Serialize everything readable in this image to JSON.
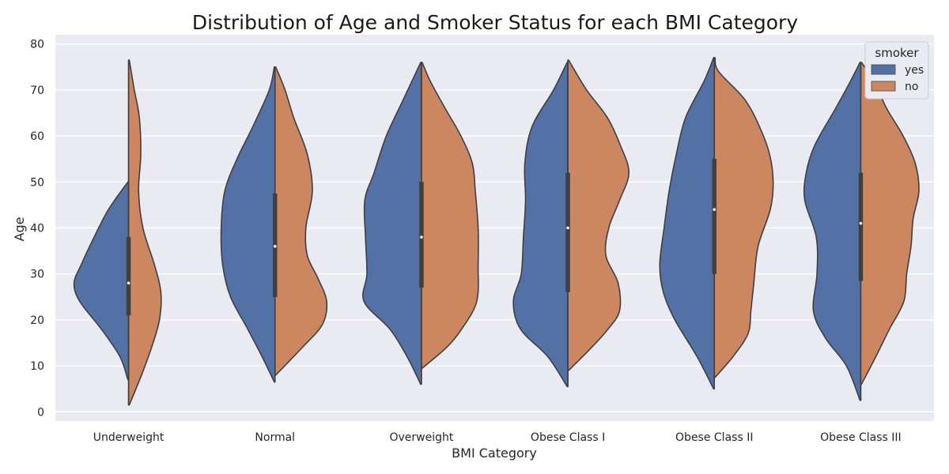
{
  "chart_data": {
    "type": "violin",
    "split": true,
    "title": "Distribution of Age and Smoker Status for each BMI Category",
    "xlabel": "BMI Category",
    "ylabel": "Age",
    "categories": [
      "Underweight",
      "Normal",
      "Overweight",
      "Obese Class I",
      "Obese Class II",
      "Obese Class III"
    ],
    "ylim": [
      -2,
      82
    ],
    "yticks": [
      0,
      10,
      20,
      30,
      40,
      50,
      60,
      70,
      80
    ],
    "grid": true,
    "legend": {
      "title": "smoker",
      "position": "top-right",
      "entries": [
        {
          "label": "yes",
          "color": "#5471a5"
        },
        {
          "label": "no",
          "color": "#cc8760"
        }
      ]
    },
    "series": [
      {
        "name": "yes",
        "color": "#5471a5",
        "side": "left",
        "violins": [
          {
            "range": [
              7,
              50
            ],
            "profile": [
              [
                7,
                0.01
              ],
              [
                12,
                0.12
              ],
              [
                18,
                0.38
              ],
              [
                24,
                0.68
              ],
              [
                28,
                0.76
              ],
              [
                32,
                0.66
              ],
              [
                38,
                0.48
              ],
              [
                44,
                0.28
              ],
              [
                50,
                0.01
              ]
            ]
          },
          {
            "range": [
              6.5,
              75
            ],
            "profile": [
              [
                6.5,
                0.01
              ],
              [
                12,
                0.18
              ],
              [
                18,
                0.38
              ],
              [
                25,
                0.62
              ],
              [
                32,
                0.73
              ],
              [
                40,
                0.75
              ],
              [
                48,
                0.7
              ],
              [
                55,
                0.53
              ],
              [
                62,
                0.31
              ],
              [
                70,
                0.08
              ],
              [
                75,
                0.01
              ]
            ]
          },
          {
            "range": [
              6,
              76
            ],
            "profile": [
              [
                6,
                0.01
              ],
              [
                12,
                0.2
              ],
              [
                18,
                0.44
              ],
              [
                24,
                0.8
              ],
              [
                30,
                0.76
              ],
              [
                38,
                0.78
              ],
              [
                46,
                0.79
              ],
              [
                52,
                0.66
              ],
              [
                60,
                0.49
              ],
              [
                68,
                0.25
              ],
              [
                76,
                0.01
              ]
            ]
          },
          {
            "range": [
              5.5,
              76
            ],
            "profile": [
              [
                5.5,
                0.01
              ],
              [
                12,
                0.28
              ],
              [
                18,
                0.66
              ],
              [
                24,
                0.76
              ],
              [
                30,
                0.65
              ],
              [
                38,
                0.62
              ],
              [
                46,
                0.59
              ],
              [
                54,
                0.6
              ],
              [
                62,
                0.5
              ],
              [
                70,
                0.2
              ],
              [
                76,
                0.01
              ]
            ]
          },
          {
            "range": [
              5,
              77
            ],
            "profile": [
              [
                5,
                0.01
              ],
              [
                12,
                0.24
              ],
              [
                20,
                0.55
              ],
              [
                26,
                0.71
              ],
              [
                32,
                0.76
              ],
              [
                40,
                0.7
              ],
              [
                48,
                0.63
              ],
              [
                56,
                0.53
              ],
              [
                64,
                0.4
              ],
              [
                72,
                0.14
              ],
              [
                77,
                0.01
              ]
            ]
          },
          {
            "range": [
              2.5,
              76
            ],
            "profile": [
              [
                2.5,
                0.01
              ],
              [
                10,
                0.2
              ],
              [
                16,
                0.49
              ],
              [
                22,
                0.66
              ],
              [
                30,
                0.61
              ],
              [
                38,
                0.62
              ],
              [
                46,
                0.78
              ],
              [
                52,
                0.76
              ],
              [
                58,
                0.64
              ],
              [
                66,
                0.35
              ],
              [
                72,
                0.14
              ],
              [
                76,
                0.01
              ]
            ]
          }
        ]
      },
      {
        "name": "no",
        "color": "#cc8760",
        "side": "right",
        "violins": [
          {
            "range": [
              1.5,
              76.5
            ],
            "profile": [
              [
                1.5,
                0.01
              ],
              [
                8,
                0.18
              ],
              [
                14,
                0.32
              ],
              [
                20,
                0.43
              ],
              [
                26,
                0.45
              ],
              [
                32,
                0.36
              ],
              [
                40,
                0.2
              ],
              [
                48,
                0.14
              ],
              [
                56,
                0.17
              ],
              [
                64,
                0.15
              ],
              [
                70,
                0.08
              ],
              [
                76.5,
                0.01
              ]
            ]
          },
          {
            "range": [
              8,
              75
            ],
            "profile": [
              [
                8,
                0.01
              ],
              [
                14,
                0.38
              ],
              [
                19,
                0.66
              ],
              [
                24,
                0.72
              ],
              [
                29,
                0.6
              ],
              [
                34,
                0.45
              ],
              [
                40,
                0.43
              ],
              [
                48,
                0.52
              ],
              [
                56,
                0.45
              ],
              [
                64,
                0.26
              ],
              [
                70,
                0.14
              ],
              [
                75,
                0.01
              ]
            ]
          },
          {
            "range": [
              9.5,
              76
            ],
            "profile": [
              [
                9.5,
                0.01
              ],
              [
                14,
                0.35
              ],
              [
                18,
                0.56
              ],
              [
                24,
                0.77
              ],
              [
                32,
                0.79
              ],
              [
                40,
                0.79
              ],
              [
                48,
                0.75
              ],
              [
                54,
                0.71
              ],
              [
                60,
                0.55
              ],
              [
                66,
                0.33
              ],
              [
                72,
                0.12
              ],
              [
                76,
                0.01
              ]
            ]
          },
          {
            "range": [
              9,
              76.5
            ],
            "profile": [
              [
                9,
                0.01
              ],
              [
                14,
                0.33
              ],
              [
                18,
                0.56
              ],
              [
                22,
                0.72
              ],
              [
                28,
                0.7
              ],
              [
                34,
                0.53
              ],
              [
                40,
                0.57
              ],
              [
                46,
                0.72
              ],
              [
                52,
                0.85
              ],
              [
                58,
                0.73
              ],
              [
                64,
                0.55
              ],
              [
                70,
                0.26
              ],
              [
                76.5,
                0.01
              ]
            ]
          },
          {
            "range": [
              7.5,
              77
            ],
            "profile": [
              [
                7.5,
                0.01
              ],
              [
                12,
                0.26
              ],
              [
                17,
                0.47
              ],
              [
                22,
                0.51
              ],
              [
                28,
                0.55
              ],
              [
                36,
                0.61
              ],
              [
                44,
                0.78
              ],
              [
                50,
                0.82
              ],
              [
                56,
                0.77
              ],
              [
                62,
                0.63
              ],
              [
                68,
                0.42
              ],
              [
                74,
                0.06
              ],
              [
                77,
                0.01
              ]
            ]
          },
          {
            "range": [
              6,
              76
            ],
            "profile": [
              [
                6,
                0.01
              ],
              [
                12,
                0.21
              ],
              [
                18,
                0.4
              ],
              [
                24,
                0.6
              ],
              [
                30,
                0.64
              ],
              [
                36,
                0.7
              ],
              [
                42,
                0.73
              ],
              [
                48,
                0.81
              ],
              [
                54,
                0.76
              ],
              [
                60,
                0.59
              ],
              [
                66,
                0.36
              ],
              [
                72,
                0.18
              ],
              [
                76,
                0.01
              ]
            ]
          }
        ]
      }
    ],
    "box": [
      {
        "median": 28,
        "q1": 21,
        "q3": 38
      },
      {
        "median": 36,
        "q1": 25,
        "q3": 47.5
      },
      {
        "median": 38,
        "q1": 27,
        "q3": 50
      },
      {
        "median": 40,
        "q1": 26,
        "q3": 52
      },
      {
        "median": 44,
        "q1": 30,
        "q3": 55
      },
      {
        "median": 41,
        "q1": 28.5,
        "q3": 52
      }
    ]
  }
}
